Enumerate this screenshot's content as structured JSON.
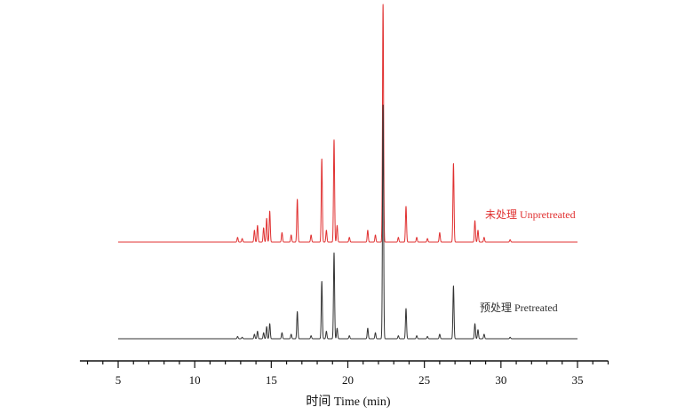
{
  "chart_data": {
    "type": "line",
    "title": "",
    "xlabel": "时间 Time (min)",
    "ylabel": "",
    "xlim": [
      2.5,
      37
    ],
    "xticks": [
      5,
      10,
      15,
      20,
      25,
      30,
      35
    ],
    "x_range": [
      5,
      35
    ],
    "grid": false,
    "series": [
      {
        "name": "未处理 Unpretreated",
        "color": "#e03030",
        "peaks": [
          [
            12.8,
            0.02
          ],
          [
            13.1,
            0.015
          ],
          [
            13.9,
            0.05
          ],
          [
            14.1,
            0.07
          ],
          [
            14.5,
            0.06
          ],
          [
            14.7,
            0.1
          ],
          [
            14.9,
            0.13
          ],
          [
            15.7,
            0.04
          ],
          [
            16.3,
            0.03
          ],
          [
            16.7,
            0.18
          ],
          [
            17.6,
            0.03
          ],
          [
            18.3,
            0.35
          ],
          [
            18.6,
            0.05
          ],
          [
            19.1,
            0.43
          ],
          [
            19.3,
            0.07
          ],
          [
            20.1,
            0.02
          ],
          [
            21.3,
            0.05
          ],
          [
            21.8,
            0.03
          ],
          [
            22.3,
            1.0
          ],
          [
            23.3,
            0.02
          ],
          [
            23.8,
            0.15
          ],
          [
            24.5,
            0.02
          ],
          [
            25.2,
            0.015
          ],
          [
            26.0,
            0.04
          ],
          [
            26.9,
            0.33
          ],
          [
            28.3,
            0.09
          ],
          [
            28.5,
            0.05
          ],
          [
            28.9,
            0.02
          ],
          [
            30.6,
            0.01
          ]
        ]
      },
      {
        "name": "预处理 Pretreated",
        "color": "#333333",
        "peaks": [
          [
            12.8,
            0.015
          ],
          [
            13.1,
            0.01
          ],
          [
            13.9,
            0.03
          ],
          [
            14.1,
            0.05
          ],
          [
            14.5,
            0.04
          ],
          [
            14.7,
            0.08
          ],
          [
            14.9,
            0.1
          ],
          [
            15.7,
            0.04
          ],
          [
            16.3,
            0.03
          ],
          [
            16.7,
            0.18
          ],
          [
            17.6,
            0.02
          ],
          [
            18.3,
            0.38
          ],
          [
            18.6,
            0.05
          ],
          [
            19.1,
            0.57
          ],
          [
            19.3,
            0.07
          ],
          [
            20.1,
            0.02
          ],
          [
            21.3,
            0.07
          ],
          [
            21.8,
            0.04
          ],
          [
            22.3,
            1.55
          ],
          [
            23.3,
            0.02
          ],
          [
            23.8,
            0.2
          ],
          [
            24.5,
            0.02
          ],
          [
            25.2,
            0.015
          ],
          [
            26.0,
            0.03
          ],
          [
            26.9,
            0.35
          ],
          [
            28.3,
            0.1
          ],
          [
            28.5,
            0.06
          ],
          [
            28.9,
            0.03
          ],
          [
            30.6,
            0.01
          ]
        ]
      }
    ]
  }
}
